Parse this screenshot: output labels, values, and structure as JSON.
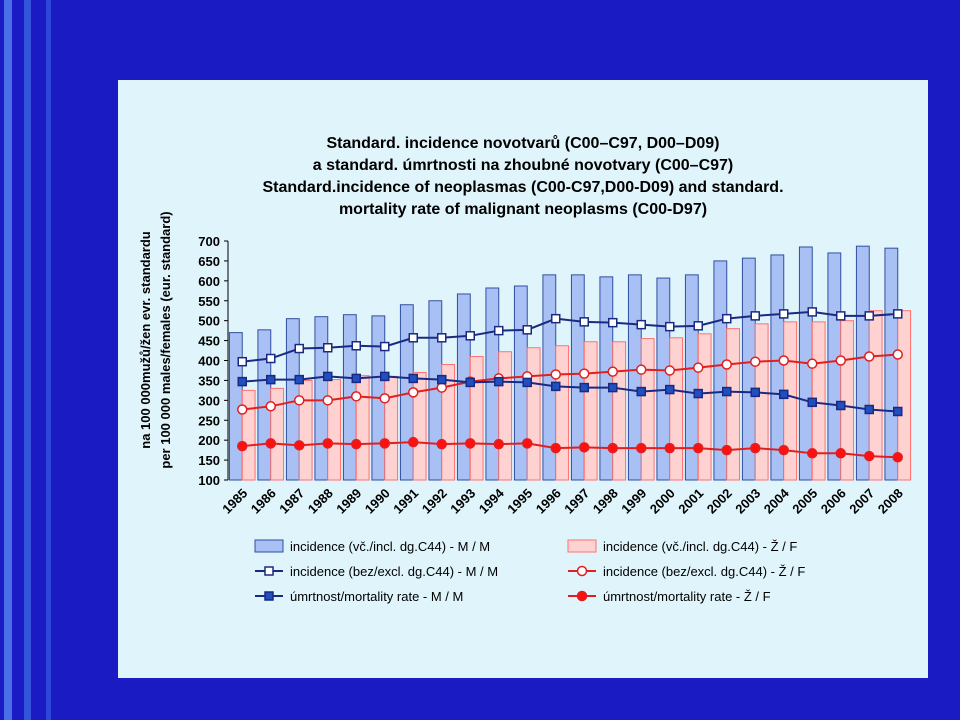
{
  "chart_data": {
    "type": "bar",
    "title": [
      "Standard. incidence novotvarů (C00–C97, D00–D09)",
      "a standard. úmrtnosti na zhoubné novotvary (C00–C97)",
      "Standard.incidence of neoplasmas (C00-C97,D00-D09) and standard.",
      "mortality rate of malignant neoplasms (C00-D97)"
    ],
    "ylabel": [
      "na 100 000mužů/žen evr. standardu",
      "per 100 000 males/females (eur. standard)"
    ],
    "categories": [
      "1985",
      "1986",
      "1987",
      "1988",
      "1989",
      "1990",
      "1991",
      "1992",
      "1993",
      "1994",
      "1995",
      "1996",
      "1997",
      "1998",
      "1999",
      "2000",
      "2001",
      "2002",
      "2003",
      "2004",
      "2005",
      "2006",
      "2007",
      "2008"
    ],
    "ylim": [
      100,
      700
    ],
    "yticks": [
      100,
      150,
      200,
      250,
      300,
      350,
      400,
      450,
      500,
      550,
      600,
      650,
      700
    ],
    "series": [
      {
        "name": "incidence (vč./incl. dg.C44) - M / M",
        "type": "bar",
        "color": "#a9c0f5",
        "stroke": "#3050a0",
        "values": [
          470,
          477,
          505,
          510,
          515,
          512,
          540,
          550,
          567,
          582,
          587,
          615,
          615,
          610,
          615,
          607,
          615,
          650,
          657,
          665,
          685,
          670,
          687,
          682
        ]
      },
      {
        "name": "incidence (vč./incl. dg.C44) - Ž / F",
        "type": "bar",
        "color": "#ffd2d2",
        "stroke": "#ff7070",
        "values": [
          325,
          330,
          350,
          352,
          362,
          360,
          370,
          390,
          410,
          422,
          432,
          437,
          447,
          447,
          455,
          457,
          467,
          480,
          492,
          497,
          497,
          500,
          525,
          525
        ]
      },
      {
        "name": "incidence (bez/excl. dg.C44) - M / M",
        "type": "line",
        "color": "#1a2a80",
        "marker": "square",
        "marker_fill": "#ffffff",
        "values": [
          397,
          405,
          430,
          432,
          437,
          435,
          457,
          457,
          462,
          475,
          477,
          505,
          497,
          495,
          490,
          485,
          487,
          505,
          512,
          517,
          522,
          512,
          512,
          517
        ]
      },
      {
        "name": "incidence (bez/excl. dg.C44) - Ž / F",
        "type": "line",
        "color": "#e02020",
        "marker": "circle",
        "marker_fill": "#ffffff",
        "values": [
          277,
          285,
          300,
          300,
          310,
          305,
          320,
          332,
          347,
          355,
          360,
          365,
          367,
          372,
          377,
          375,
          382,
          390,
          397,
          400,
          392,
          400,
          410,
          415
        ]
      },
      {
        "name": "úmrtnost/mortality rate - M / M",
        "type": "line",
        "color": "#1a2a80",
        "marker": "square",
        "marker_fill": "#1f4fc0",
        "values": [
          347,
          352,
          352,
          360,
          355,
          360,
          355,
          352,
          345,
          347,
          345,
          335,
          332,
          332,
          322,
          327,
          317,
          322,
          320,
          315,
          295,
          287,
          277,
          272
        ]
      },
      {
        "name": "úmrtnost/mortality rate - Ž / F",
        "type": "line",
        "color": "#e02020",
        "marker": "circle",
        "marker_fill": "#ff1010",
        "values": [
          185,
          192,
          187,
          192,
          190,
          192,
          195,
          190,
          192,
          190,
          192,
          180,
          182,
          180,
          180,
          180,
          180,
          175,
          180,
          175,
          167,
          167,
          160,
          157
        ]
      }
    ]
  }
}
